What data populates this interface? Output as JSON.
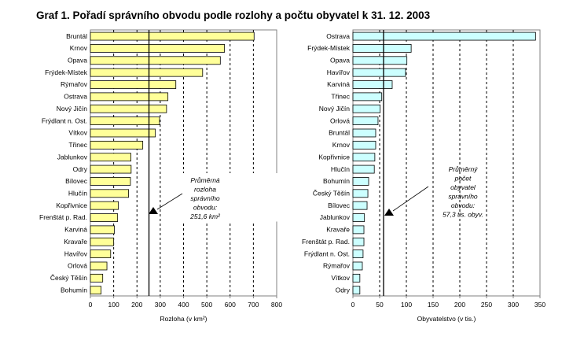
{
  "title": "Graf 1. Pořadí správního obvodu podle rozlohy a počtu obyvatel k 31. 12. 2003",
  "chart_data": [
    {
      "type": "bar",
      "orientation": "horizontal",
      "categories": [
        "Bruntál",
        "Krnov",
        "Opava",
        "Frýdek-Místek",
        "Rýmařov",
        "Ostrava",
        "Nový Jičín",
        "Frýdlant n. Ost.",
        "Vítkov",
        "Třinec",
        "Jablunkov",
        "Odry",
        "Bílovec",
        "Hlučín",
        "Kopřivnice",
        "Frenštát p. Rad.",
        "Karviná",
        "Kravaře",
        "Havířov",
        "Orlová",
        "Český Těšín",
        "Bohumín"
      ],
      "values": [
        703,
        576,
        558,
        482,
        367,
        333,
        327,
        297,
        279,
        225,
        174,
        175,
        172,
        164,
        120,
        117,
        103,
        100,
        87,
        71,
        53,
        46
      ],
      "xlabel": "Rozloha (v km²)",
      "xlim": [
        0,
        800
      ],
      "ticks": [
        0,
        100,
        200,
        300,
        400,
        500,
        600,
        700,
        800
      ],
      "mean": 251.6,
      "annotation": [
        "Průměrná",
        "rozloha",
        "správního",
        "obvodu:",
        "251,6 km²"
      ],
      "color": "#FFFF99",
      "grid": "dashed vertical"
    },
    {
      "type": "bar",
      "orientation": "horizontal",
      "categories": [
        "Ostrava",
        "Frýdek-Místek",
        "Opava",
        "Havířov",
        "Karviná",
        "Třinec",
        "Nový Jičín",
        "Orlová",
        "Bruntál",
        "Krnov",
        "Kopřivnice",
        "Hlučín",
        "Bohumín",
        "Český Těšín",
        "Bílovec",
        "Jablunkov",
        "Kravaře",
        "Frenštát p. Rad.",
        "Frýdlant n. Ost.",
        "Rýmařov",
        "Vítkov",
        "Odry"
      ],
      "values": [
        341.7,
        109,
        101,
        98.5,
        73.5,
        54,
        51,
        47,
        42.6,
        42.6,
        41,
        40,
        29.4,
        28,
        26.5,
        21.6,
        20.6,
        20.6,
        19,
        17.6,
        13,
        13
      ],
      "xlabel": "Obyvatelstvo (v tis.)",
      "xlim": [
        0,
        350
      ],
      "ticks": [
        0,
        50,
        100,
        150,
        200,
        250,
        300,
        350
      ],
      "mean": 57.3,
      "annotation": [
        "Průměrný",
        "počet",
        "obyvatel",
        "správního",
        "obvodu:",
        "57,3 tis. obyv."
      ],
      "color": "#CCFFFF",
      "grid": "dashed vertical"
    }
  ]
}
